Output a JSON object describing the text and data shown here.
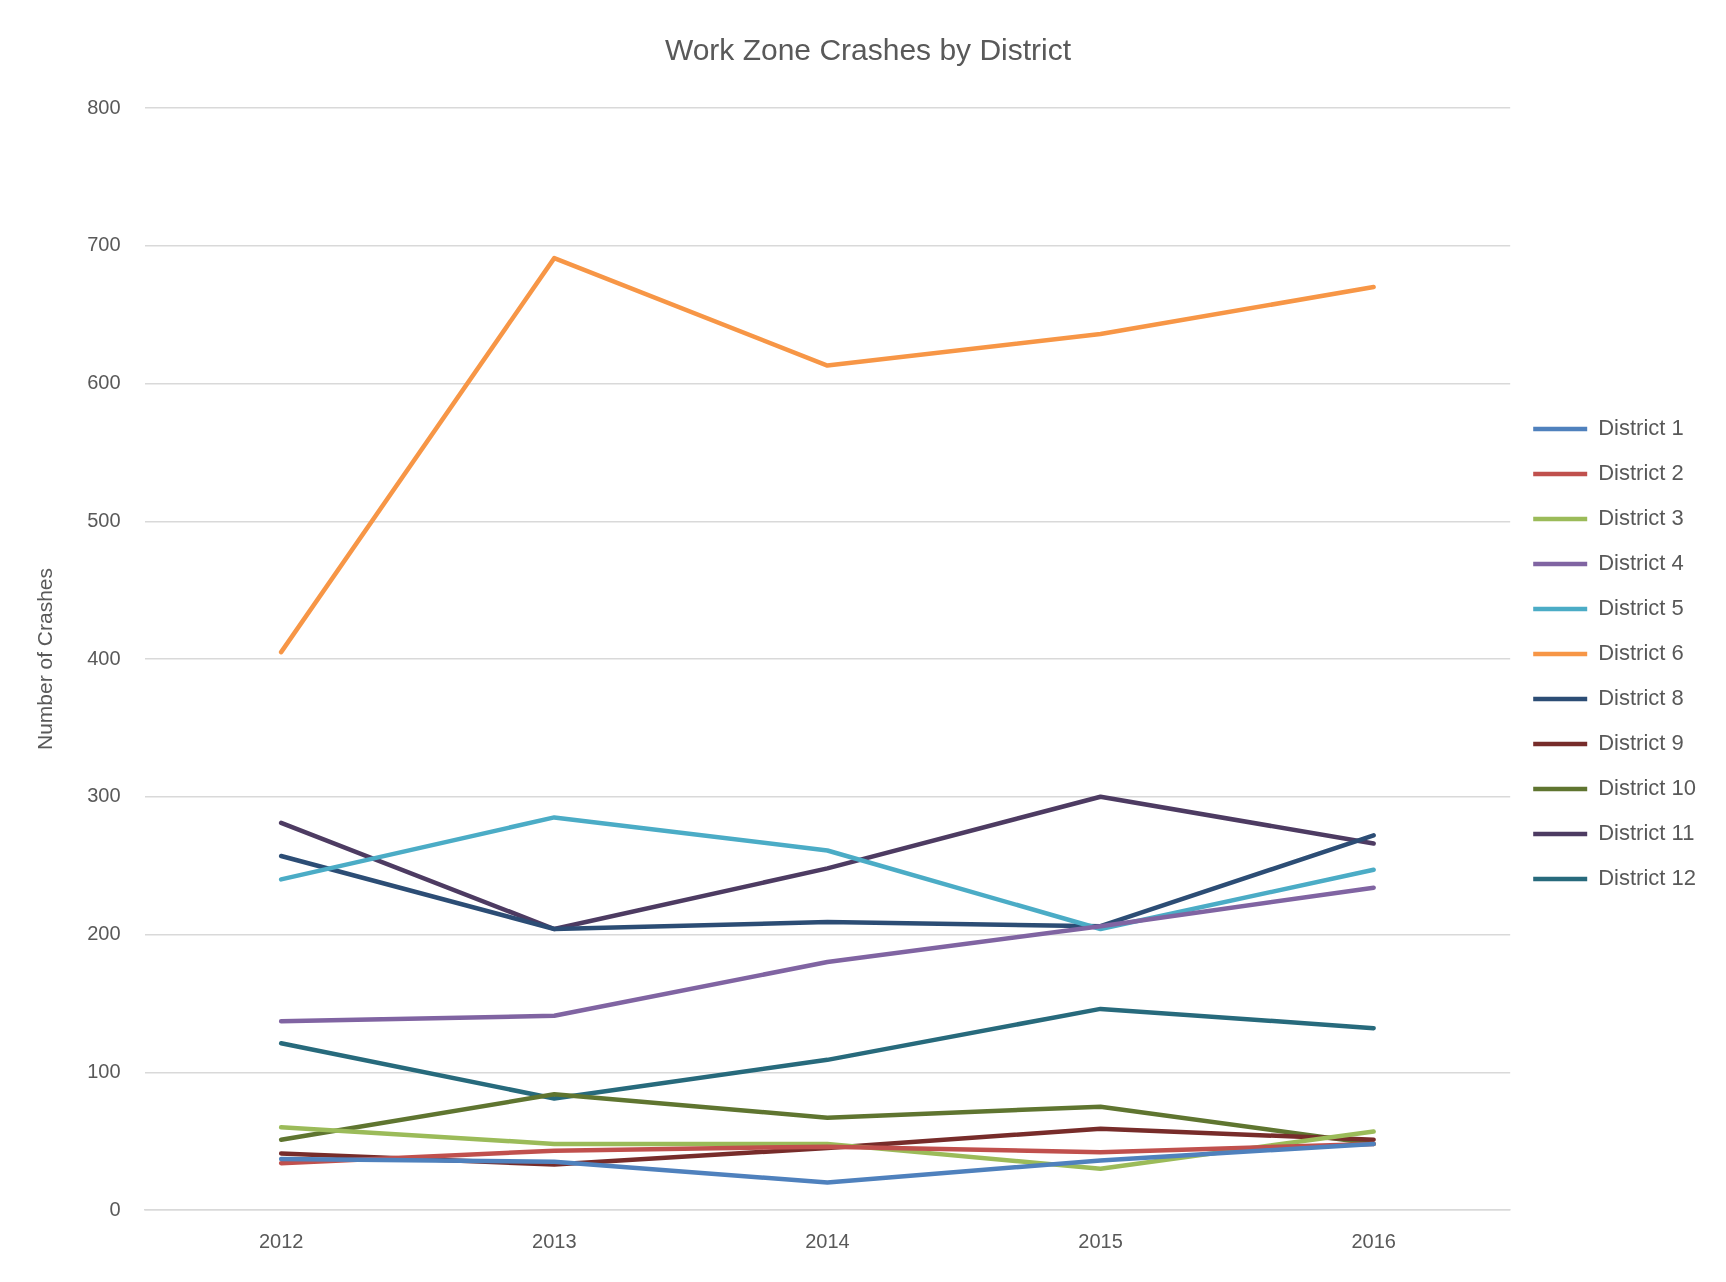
{
  "chart_data": {
    "type": "line",
    "title": "Work Zone Crashes by District",
    "ylabel": "Number of Crashes",
    "categories": [
      "2012",
      "2013",
      "2014",
      "2015",
      "2016"
    ],
    "series": [
      {
        "name": "District 1",
        "color": "#4f81bd",
        "values": [
          37,
          35,
          20,
          36,
          48
        ]
      },
      {
        "name": "District 2",
        "color": "#c0504d",
        "values": [
          34,
          43,
          46,
          42,
          48
        ]
      },
      {
        "name": "District 3",
        "color": "#9bbb59",
        "values": [
          60,
          48,
          48,
          30,
          57
        ]
      },
      {
        "name": "District 4",
        "color": "#8064a2",
        "values": [
          137,
          141,
          180,
          206,
          234
        ]
      },
      {
        "name": "District 5",
        "color": "#4bacc6",
        "values": [
          240,
          285,
          261,
          204,
          247
        ]
      },
      {
        "name": "District 6",
        "color": "#f79646",
        "values": [
          405,
          691,
          613,
          636,
          670
        ]
      },
      {
        "name": "District 8",
        "color": "#2c4d75",
        "values": [
          257,
          204,
          209,
          206,
          272
        ]
      },
      {
        "name": "District 9",
        "color": "#772c2a",
        "values": [
          41,
          33,
          45,
          59,
          51
        ]
      },
      {
        "name": "District 10",
        "color": "#5f7530",
        "values": [
          51,
          84,
          67,
          75,
          48
        ]
      },
      {
        "name": "District 11",
        "color": "#4d3b62",
        "values": [
          281,
          204,
          248,
          300,
          266
        ]
      },
      {
        "name": "District 12",
        "color": "#276a7c",
        "values": [
          121,
          81,
          109,
          146,
          132
        ]
      }
    ],
    "ylim": [
      0,
      800
    ],
    "yticks": [
      0,
      100,
      200,
      300,
      400,
      500,
      600,
      700,
      800
    ],
    "grid": "y",
    "legend": "right",
    "marker": "none"
  }
}
